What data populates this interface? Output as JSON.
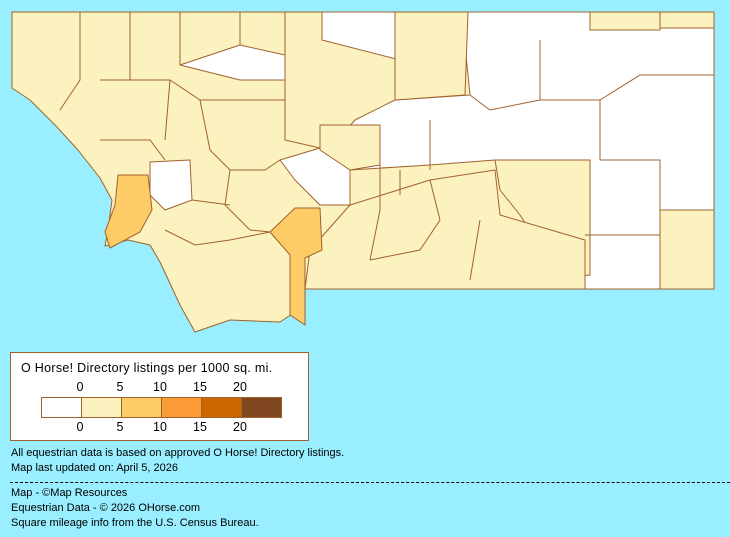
{
  "colors": {
    "background": "#99EEFF",
    "border": "#A0622D"
  },
  "legend": {
    "title": "O Horse! Directory listings per 1000 sq. mi.",
    "top_ticks": [
      "0",
      "5",
      "10",
      "15",
      "20"
    ],
    "bottom_ticks": [
      "0",
      "5",
      "10",
      "15",
      "20"
    ],
    "swatches": [
      "#FFFFFF",
      "#FBF2C0",
      "#FDCC66",
      "#FB9B35",
      "#CC6600",
      "#7F4620"
    ]
  },
  "notes": {
    "line1": "All equestrian data is based on approved O Horse! Directory listings.",
    "line2": "Map last updated on: April 5, 2026"
  },
  "credits": {
    "map": "Map - ©Map Resources",
    "data": "Equestrian Data - © 2026 OHorse.com",
    "census": "Square mileage info from the U.S. Census Bureau."
  },
  "map": {
    "fills": {
      "none": "#FFFFFF",
      "low": "#FBF2C0",
      "mid": "#FDCC66"
    }
  }
}
